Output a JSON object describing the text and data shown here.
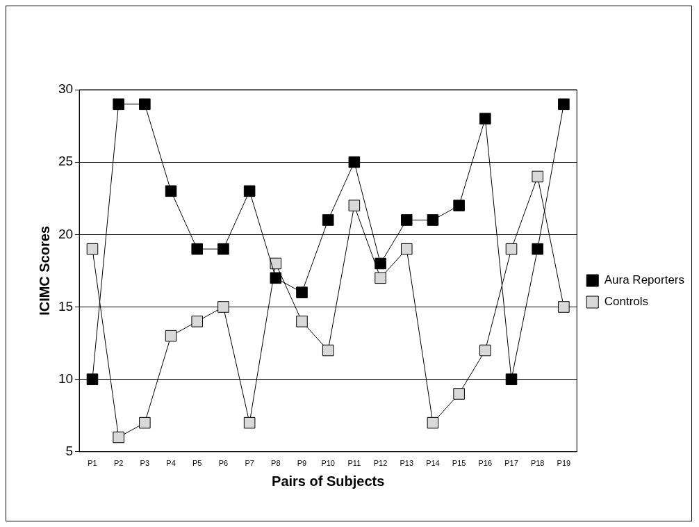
{
  "chart_data": {
    "type": "line",
    "xlabel": "Pairs of Subjects",
    "ylabel": "ICIMC Scores",
    "categories": [
      "P1",
      "P2",
      "P3",
      "P4",
      "P5",
      "P6",
      "P7",
      "P8",
      "P9",
      "P10",
      "P11",
      "P12",
      "P13",
      "P14",
      "P15",
      "P16",
      "P17",
      "P18",
      "P19"
    ],
    "ylim": [
      5,
      30
    ],
    "yticks": [
      5,
      10,
      15,
      20,
      25,
      30
    ],
    "grid": "y",
    "legend": "right",
    "marker": "square",
    "line_style": "solid",
    "series": [
      {
        "name": "Aura Reporters",
        "color": "#000000",
        "values": [
          10,
          29,
          29,
          23,
          19,
          19,
          23,
          17,
          16,
          21,
          25,
          18,
          21,
          21,
          22,
          28,
          10,
          19,
          29
        ]
      },
      {
        "name": "Controls",
        "color": "#d9d9d9",
        "values": [
          19,
          6,
          7,
          13,
          14,
          15,
          7,
          18,
          14,
          12,
          22,
          17,
          19,
          7,
          9,
          12,
          19,
          24,
          15
        ]
      }
    ]
  }
}
